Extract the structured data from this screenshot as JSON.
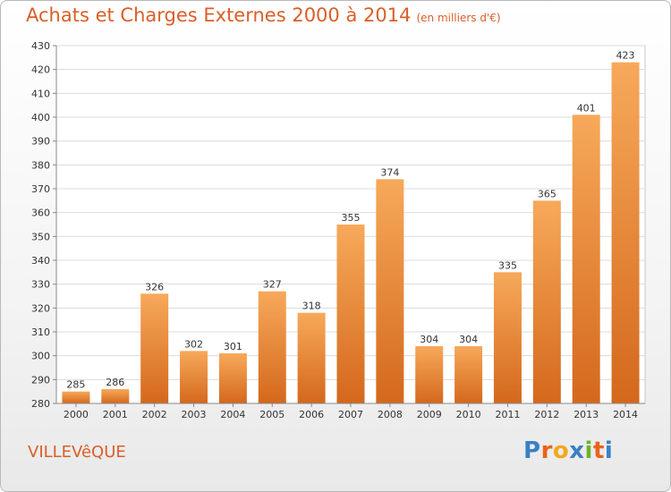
{
  "header": {
    "title": "Achats et Charges Externes 2000 à 2014",
    "unit": "(en milliers d'€)"
  },
  "footer": {
    "city": "VILLEVêQUE",
    "logo": [
      "P",
      "r",
      "o",
      "x",
      "i",
      "t",
      "i"
    ]
  },
  "colors": {
    "title": "#d95f29",
    "bar_light": "#f7a95a",
    "bar_dark": "#d4681c",
    "logo": [
      "#3b7fc4",
      "#e8631c",
      "#f2a81d",
      "#3b7fc4",
      "#6ab42d",
      "#e8631c",
      "#3b7fc4"
    ]
  },
  "chart_data": {
    "type": "bar",
    "title": "Achats et Charges Externes 2000 à 2014",
    "subtitle": "(en milliers d'€)",
    "xlabel": "",
    "ylabel": "",
    "categories": [
      "2000",
      "2001",
      "2002",
      "2003",
      "2004",
      "2005",
      "2006",
      "2007",
      "2008",
      "2009",
      "2010",
      "2011",
      "2012",
      "2013",
      "2014"
    ],
    "values": [
      285,
      286,
      326,
      302,
      301,
      327,
      318,
      355,
      374,
      304,
      304,
      335,
      365,
      401,
      423
    ],
    "ylim": [
      280,
      430
    ],
    "yticks": [
      280,
      290,
      300,
      310,
      320,
      330,
      340,
      350,
      360,
      370,
      380,
      390,
      400,
      410,
      420,
      430
    ],
    "grid": true,
    "data_labels": true
  }
}
